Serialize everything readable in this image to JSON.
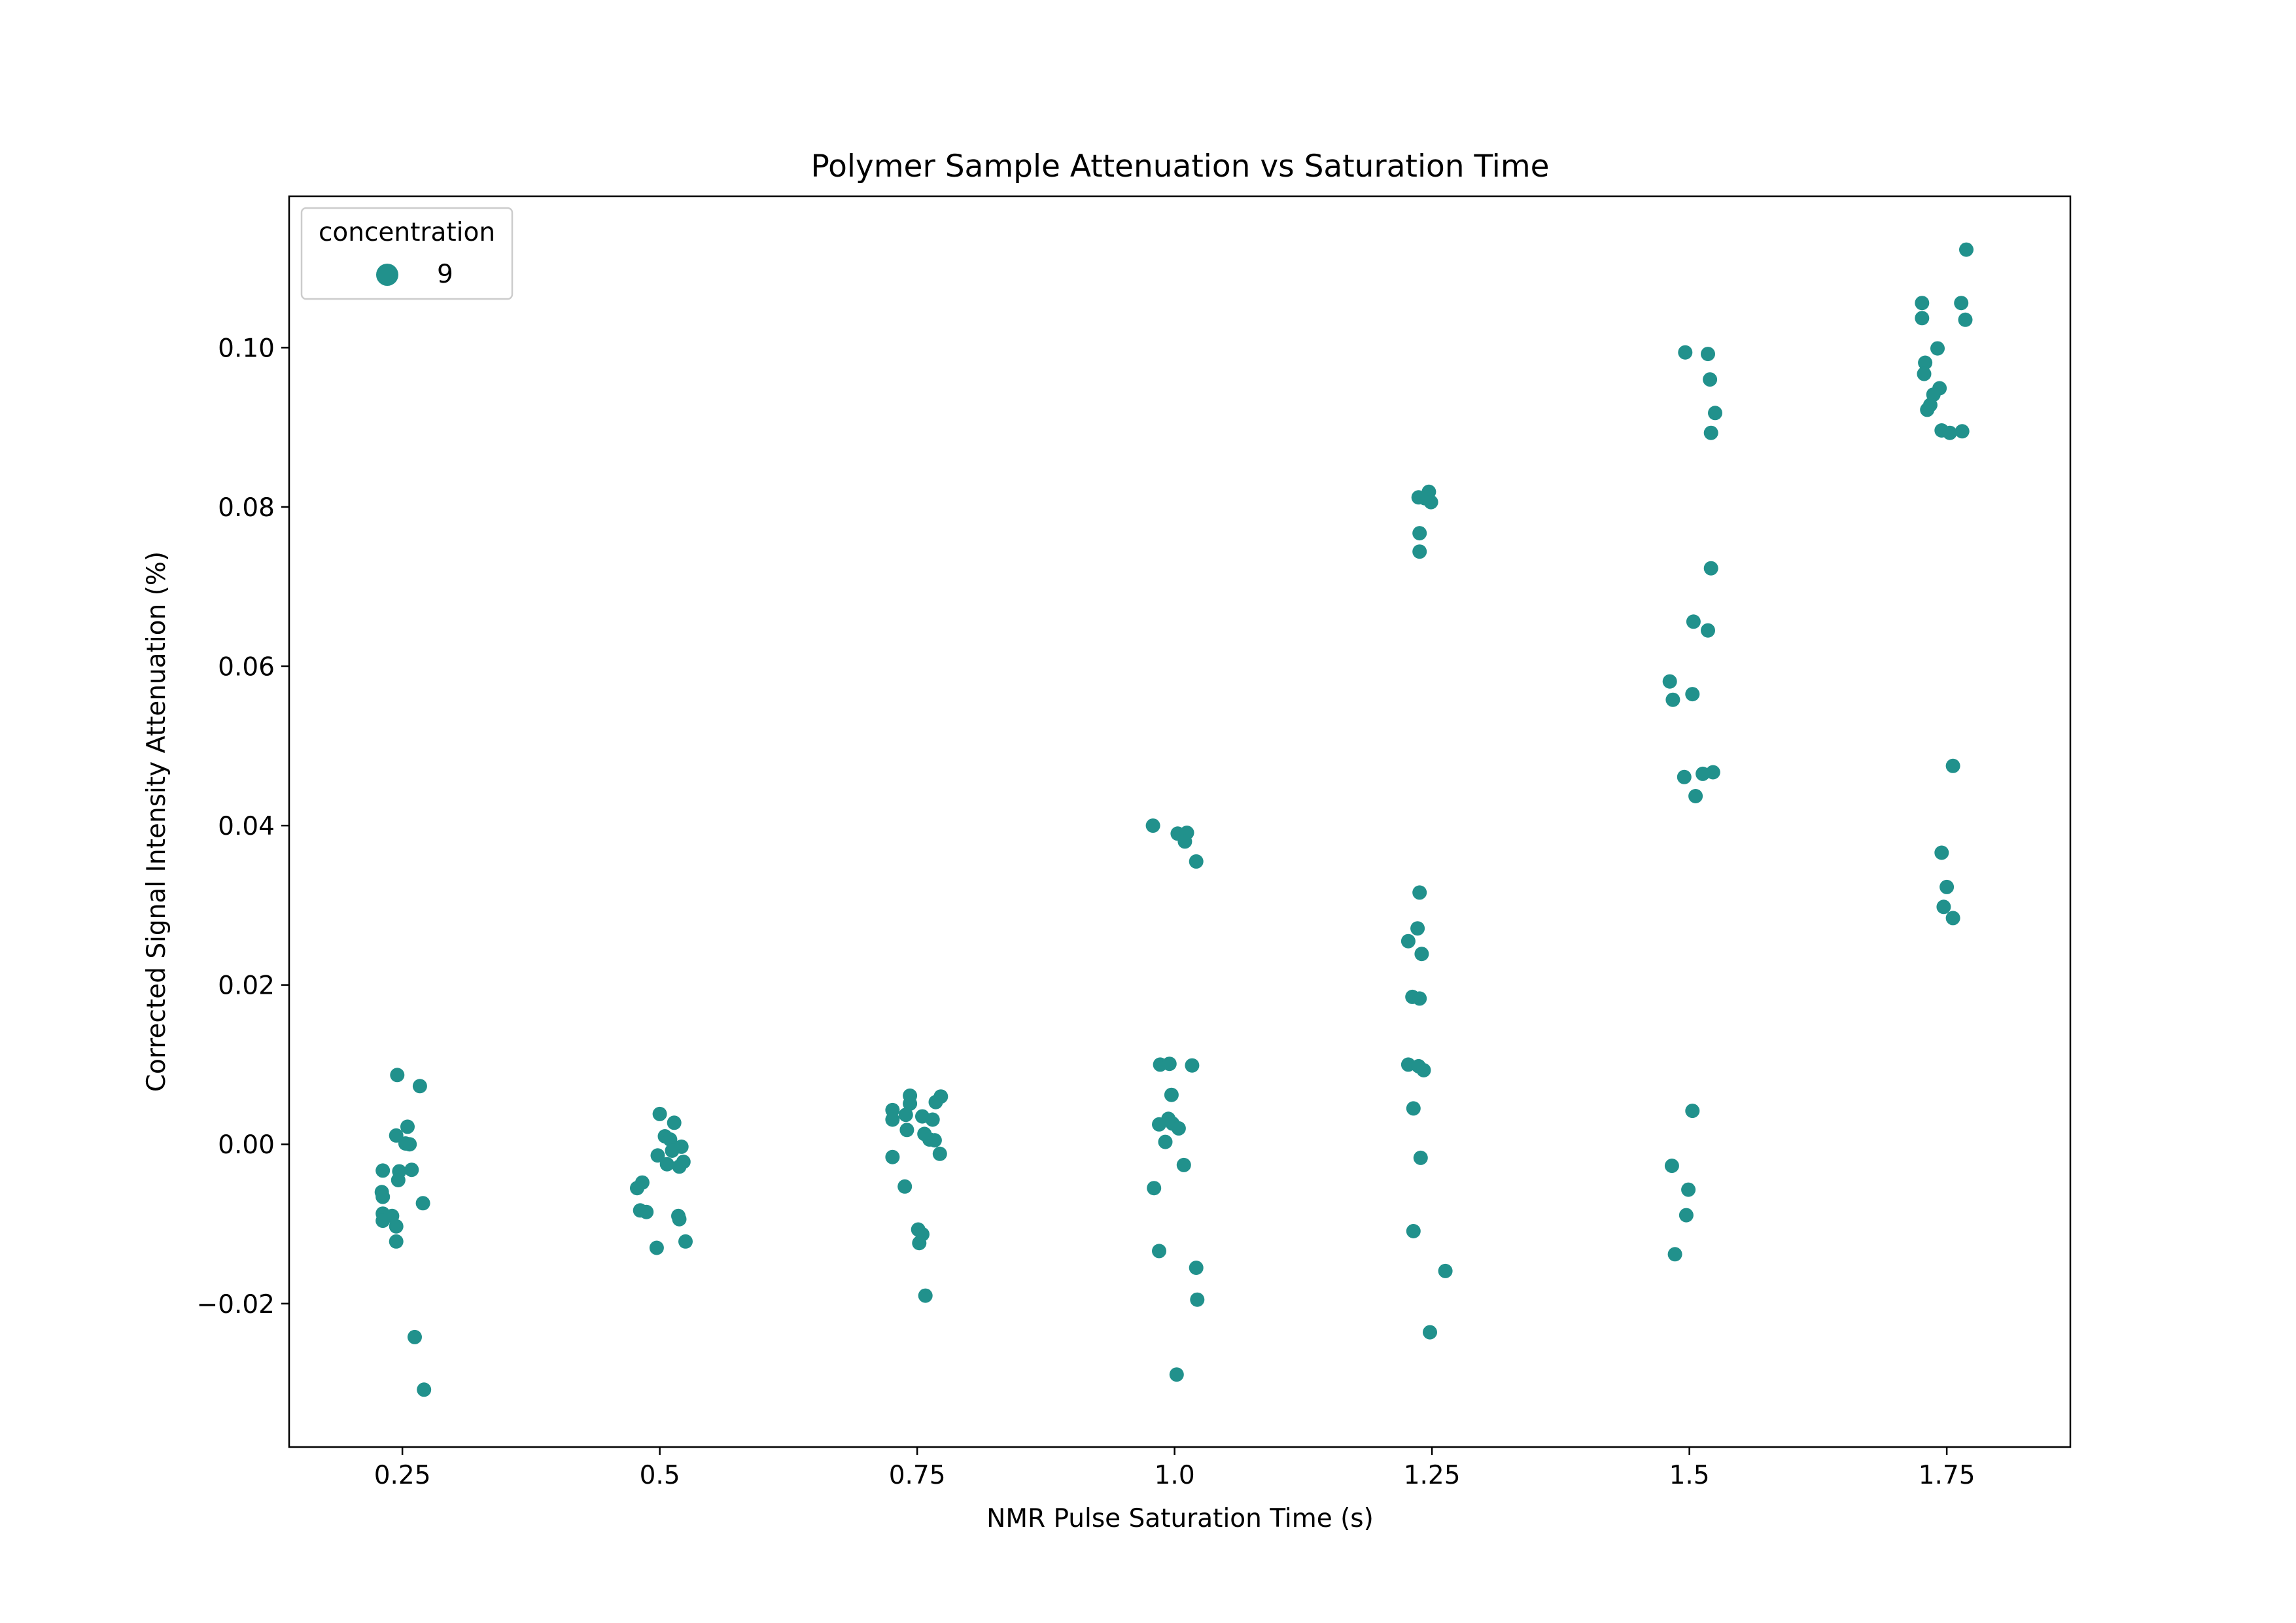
{
  "chart_data": {
    "type": "scatter",
    "title": "Polymer Sample Attenuation vs Saturation Time",
    "xlabel": "NMR Pulse Saturation Time (s)",
    "ylabel": "Corrected Signal Intensity Attenuation (%)",
    "categories": [
      "0.25",
      "0.5",
      "0.75",
      "1.0",
      "1.25",
      "1.5",
      "1.75"
    ],
    "xlim": [
      0.14,
      1.87
    ],
    "ylim": [
      -0.038,
      0.119
    ],
    "yticks": [
      -0.02,
      0.0,
      0.02,
      0.04,
      0.06,
      0.08,
      0.1
    ],
    "ytick_labels": [
      "−0.02",
      "0.00",
      "0.02",
      "0.04",
      "0.06",
      "0.08",
      "0.10"
    ],
    "grid": false,
    "legend": {
      "title": "concentration",
      "placement": "top-left",
      "entries": [
        "9"
      ]
    },
    "colors": {
      "points": "#21918c"
    },
    "series": [
      {
        "name": "9",
        "points": [
          [
            0.245,
            0.0087
          ],
          [
            0.267,
            0.0073
          ],
          [
            0.255,
            0.0022
          ],
          [
            0.244,
            0.0011
          ],
          [
            0.257,
            0.0
          ],
          [
            0.253,
            0.0001
          ],
          [
            0.231,
            -0.0033
          ],
          [
            0.247,
            -0.0034
          ],
          [
            0.259,
            -0.0032
          ],
          [
            0.246,
            -0.0045
          ],
          [
            0.23,
            -0.006
          ],
          [
            0.231,
            -0.0066
          ],
          [
            0.27,
            -0.0074
          ],
          [
            0.231,
            -0.0087
          ],
          [
            0.24,
            -0.009
          ],
          [
            0.231,
            -0.0096
          ],
          [
            0.244,
            -0.0103
          ],
          [
            0.244,
            -0.0122
          ],
          [
            0.262,
            -0.0242
          ],
          [
            0.271,
            -0.0308
          ],
          [
            0.5,
            0.0038
          ],
          [
            0.514,
            0.0027
          ],
          [
            0.505,
            0.001
          ],
          [
            0.51,
            0.0006
          ],
          [
            0.521,
            -0.0003
          ],
          [
            0.512,
            -0.0008
          ],
          [
            0.498,
            -0.0014
          ],
          [
            0.523,
            -0.0022
          ],
          [
            0.507,
            -0.0025
          ],
          [
            0.519,
            -0.0028
          ],
          [
            0.483,
            -0.0048
          ],
          [
            0.478,
            -0.0055
          ],
          [
            0.481,
            -0.0083
          ],
          [
            0.487,
            -0.0085
          ],
          [
            0.518,
            -0.009
          ],
          [
            0.519,
            -0.0094
          ],
          [
            0.525,
            -0.0122
          ],
          [
            0.497,
            -0.013
          ],
          [
            0.743,
            0.0061
          ],
          [
            0.773,
            0.006
          ],
          [
            0.768,
            0.0053
          ],
          [
            0.743,
            0.0051
          ],
          [
            0.726,
            0.0043
          ],
          [
            0.739,
            0.0037
          ],
          [
            0.755,
            0.0035
          ],
          [
            0.726,
            0.0031
          ],
          [
            0.765,
            0.0031
          ],
          [
            0.74,
            0.0018
          ],
          [
            0.757,
            0.0013
          ],
          [
            0.762,
            0.0006
          ],
          [
            0.767,
            0.0005
          ],
          [
            0.726,
            -0.0016
          ],
          [
            0.772,
            -0.0012
          ],
          [
            0.738,
            -0.0053
          ],
          [
            0.751,
            -0.0107
          ],
          [
            0.755,
            -0.0113
          ],
          [
            0.752,
            -0.0124
          ],
          [
            0.758,
            -0.019
          ],
          [
            0.979,
            0.04
          ],
          [
            1.003,
            0.039
          ],
          [
            1.012,
            0.0391
          ],
          [
            1.01,
            0.038
          ],
          [
            1.021,
            0.0355
          ],
          [
            0.986,
            0.01
          ],
          [
            0.995,
            0.0101
          ],
          [
            1.017,
            0.0099
          ],
          [
            0.997,
            0.0062
          ],
          [
            0.994,
            0.0032
          ],
          [
            0.985,
            0.0025
          ],
          [
            0.998,
            0.0026
          ],
          [
            1.004,
            0.002
          ],
          [
            0.991,
            0.0003
          ],
          [
            1.009,
            -0.0026
          ],
          [
            0.98,
            -0.0055
          ],
          [
            0.985,
            -0.0134
          ],
          [
            1.021,
            -0.0155
          ],
          [
            1.022,
            -0.0195
          ],
          [
            1.002,
            -0.0289
          ],
          [
            1.247,
            0.0819
          ],
          [
            1.237,
            0.0812
          ],
          [
            1.243,
            0.0811
          ],
          [
            1.249,
            0.0806
          ],
          [
            1.238,
            0.0767
          ],
          [
            1.238,
            0.0744
          ],
          [
            1.238,
            0.0316
          ],
          [
            1.236,
            0.0271
          ],
          [
            1.227,
            0.0255
          ],
          [
            1.24,
            0.0239
          ],
          [
            1.231,
            0.0185
          ],
          [
            1.238,
            0.0183
          ],
          [
            1.227,
            0.01
          ],
          [
            1.237,
            0.0098
          ],
          [
            1.242,
            0.0093
          ],
          [
            1.232,
            0.0045
          ],
          [
            1.239,
            -0.0017
          ],
          [
            1.232,
            -0.0109
          ],
          [
            1.263,
            -0.0159
          ],
          [
            1.248,
            -0.0236
          ],
          [
            1.496,
            0.0994
          ],
          [
            1.518,
            0.0992
          ],
          [
            1.52,
            0.096
          ],
          [
            1.525,
            0.0918
          ],
          [
            1.521,
            0.0893
          ],
          [
            1.521,
            0.0723
          ],
          [
            1.504,
            0.0656
          ],
          [
            1.518,
            0.0645
          ],
          [
            1.481,
            0.0581
          ],
          [
            1.503,
            0.0565
          ],
          [
            1.484,
            0.0558
          ],
          [
            1.523,
            0.0467
          ],
          [
            1.513,
            0.0465
          ],
          [
            1.495,
            0.0461
          ],
          [
            1.506,
            0.0437
          ],
          [
            1.503,
            0.0042
          ],
          [
            1.483,
            -0.0027
          ],
          [
            1.499,
            -0.0057
          ],
          [
            1.497,
            -0.0089
          ],
          [
            1.486,
            -0.0138
          ],
          [
            1.769,
            0.1123
          ],
          [
            1.726,
            0.1056
          ],
          [
            1.764,
            0.1056
          ],
          [
            1.726,
            0.1037
          ],
          [
            1.768,
            0.1035
          ],
          [
            1.741,
            0.0999
          ],
          [
            1.729,
            0.0981
          ],
          [
            1.728,
            0.0967
          ],
          [
            1.743,
            0.0949
          ],
          [
            1.737,
            0.0941
          ],
          [
            1.734,
            0.0928
          ],
          [
            1.731,
            0.0922
          ],
          [
            1.745,
            0.0896
          ],
          [
            1.765,
            0.0895
          ],
          [
            1.753,
            0.0893
          ],
          [
            1.756,
            0.0475
          ],
          [
            1.745,
            0.0366
          ],
          [
            1.75,
            0.0323
          ],
          [
            1.747,
            0.0298
          ],
          [
            1.756,
            0.0284
          ]
        ]
      }
    ]
  }
}
